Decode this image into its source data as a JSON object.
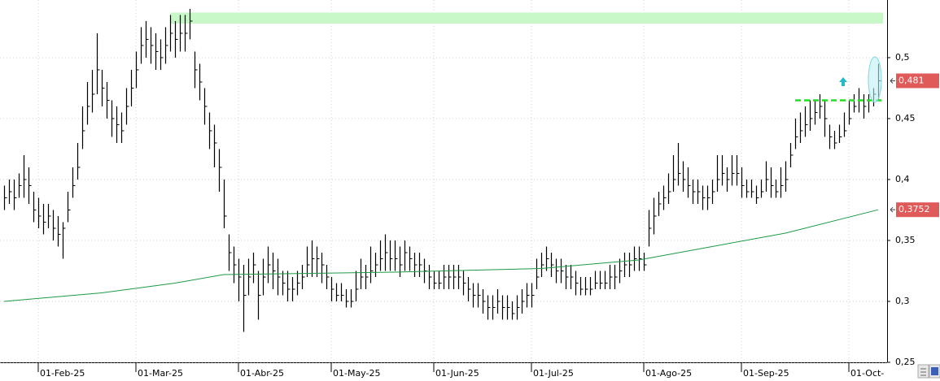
{
  "chart_data": {
    "type": "ohlc",
    "color": "#000000",
    "xlim": [
      -0.83,
      180.83
    ],
    "xticks": [
      {
        "value": 7,
        "label": "01-Feb-25"
      },
      {
        "value": 27,
        "label": "01-Mar-25"
      },
      {
        "value": 48,
        "label": "01-Abr-25"
      },
      {
        "value": 67,
        "label": "01-May-25"
      },
      {
        "value": 88,
        "label": "01-Jun-25"
      },
      {
        "value": 108,
        "label": "01-Jul-25"
      },
      {
        "value": 131,
        "label": "01-Ago-25"
      },
      {
        "value": 151,
        "label": "01-Sep-25"
      },
      {
        "value": 173,
        "label": "01-Oct-"
      }
    ],
    "ylim": [
      0.25,
      0.5473
    ],
    "yticks": [
      {
        "value": 0.25,
        "label": "0,25"
      },
      {
        "value": 0.3,
        "label": "0,3"
      },
      {
        "value": 0.35,
        "label": "0,35"
      },
      {
        "value": 0.4,
        "label": "0,4"
      },
      {
        "value": 0.45,
        "label": "0,45"
      },
      {
        "value": 0.5,
        "label": "0,5"
      }
    ],
    "grid": true,
    "high": [
      0.395,
      0.4,
      0.4,
      0.405,
      0.42,
      0.41,
      0.39,
      0.385,
      0.38,
      0.38,
      0.375,
      0.37,
      0.365,
      0.39,
      0.41,
      0.43,
      0.46,
      0.48,
      0.49,
      0.52,
      0.49,
      0.48,
      0.465,
      0.46,
      0.455,
      0.475,
      0.49,
      0.505,
      0.525,
      0.53,
      0.525,
      0.52,
      0.515,
      0.525,
      0.535,
      0.53,
      0.535,
      0.535,
      0.54,
      0.505,
      0.495,
      0.475,
      0.455,
      0.445,
      0.425,
      0.4,
      0.355,
      0.345,
      0.335,
      0.33,
      0.335,
      0.34,
      0.325,
      0.335,
      0.345,
      0.34,
      0.335,
      0.325,
      0.325,
      0.32,
      0.325,
      0.33,
      0.345,
      0.35,
      0.345,
      0.34,
      0.33,
      0.32,
      0.315,
      0.315,
      0.31,
      0.31,
      0.325,
      0.335,
      0.33,
      0.345,
      0.34,
      0.35,
      0.355,
      0.35,
      0.35,
      0.345,
      0.35,
      0.345,
      0.34,
      0.34,
      0.335,
      0.33,
      0.325,
      0.325,
      0.33,
      0.33,
      0.33,
      0.33,
      0.325,
      0.32,
      0.315,
      0.315,
      0.31,
      0.305,
      0.305,
      0.31,
      0.305,
      0.305,
      0.3,
      0.305,
      0.31,
      0.315,
      0.315,
      0.335,
      0.34,
      0.345,
      0.34,
      0.335,
      0.335,
      0.33,
      0.33,
      0.325,
      0.32,
      0.32,
      0.32,
      0.325,
      0.325,
      0.325,
      0.33,
      0.33,
      0.335,
      0.34,
      0.34,
      0.345,
      0.345,
      0.34,
      0.375,
      0.385,
      0.39,
      0.395,
      0.405,
      0.42,
      0.43,
      0.415,
      0.41,
      0.4,
      0.4,
      0.395,
      0.395,
      0.4,
      0.42,
      0.42,
      0.41,
      0.42,
      0.42,
      0.41,
      0.4,
      0.4,
      0.395,
      0.4,
      0.415,
      0.41,
      0.4,
      0.41,
      0.415,
      0.43,
      0.45,
      0.455,
      0.46,
      0.465,
      0.465,
      0.47,
      0.465,
      0.445,
      0.44,
      0.445,
      0.455,
      0.465,
      0.47,
      0.475,
      0.47,
      0.47,
      0.475,
      0.495
    ],
    "low": [
      0.375,
      0.38,
      0.375,
      0.385,
      0.385,
      0.38,
      0.365,
      0.36,
      0.355,
      0.36,
      0.35,
      0.345,
      0.335,
      0.365,
      0.385,
      0.4,
      0.425,
      0.445,
      0.455,
      0.47,
      0.46,
      0.45,
      0.435,
      0.43,
      0.43,
      0.445,
      0.46,
      0.475,
      0.495,
      0.5,
      0.495,
      0.49,
      0.49,
      0.495,
      0.505,
      0.5,
      0.505,
      0.505,
      0.515,
      0.475,
      0.465,
      0.445,
      0.425,
      0.41,
      0.39,
      0.36,
      0.325,
      0.315,
      0.3,
      0.275,
      0.305,
      0.315,
      0.285,
      0.305,
      0.315,
      0.31,
      0.305,
      0.305,
      0.3,
      0.3,
      0.305,
      0.31,
      0.32,
      0.32,
      0.32,
      0.315,
      0.31,
      0.3,
      0.3,
      0.3,
      0.295,
      0.295,
      0.3,
      0.31,
      0.31,
      0.315,
      0.32,
      0.325,
      0.325,
      0.325,
      0.325,
      0.32,
      0.325,
      0.325,
      0.32,
      0.32,
      0.315,
      0.31,
      0.31,
      0.31,
      0.31,
      0.31,
      0.31,
      0.31,
      0.305,
      0.3,
      0.295,
      0.295,
      0.29,
      0.285,
      0.285,
      0.29,
      0.285,
      0.285,
      0.285,
      0.285,
      0.29,
      0.295,
      0.295,
      0.31,
      0.32,
      0.325,
      0.32,
      0.315,
      0.315,
      0.31,
      0.31,
      0.305,
      0.305,
      0.305,
      0.305,
      0.31,
      0.31,
      0.31,
      0.31,
      0.31,
      0.315,
      0.32,
      0.32,
      0.325,
      0.325,
      0.325,
      0.345,
      0.355,
      0.37,
      0.375,
      0.38,
      0.39,
      0.395,
      0.39,
      0.385,
      0.38,
      0.38,
      0.375,
      0.375,
      0.38,
      0.39,
      0.395,
      0.39,
      0.395,
      0.395,
      0.385,
      0.385,
      0.385,
      0.38,
      0.385,
      0.39,
      0.385,
      0.385,
      0.385,
      0.39,
      0.41,
      0.425,
      0.43,
      0.435,
      0.44,
      0.445,
      0.45,
      0.435,
      0.425,
      0.425,
      0.43,
      0.435,
      0.445,
      0.455,
      0.455,
      0.45,
      0.455,
      0.46,
      0.465
    ],
    "close": [
      0.385,
      0.39,
      0.385,
      0.395,
      0.4,
      0.395,
      0.375,
      0.37,
      0.365,
      0.37,
      0.36,
      0.355,
      0.36,
      0.375,
      0.395,
      0.41,
      0.44,
      0.46,
      0.47,
      0.49,
      0.475,
      0.465,
      0.45,
      0.445,
      0.44,
      0.46,
      0.475,
      0.49,
      0.51,
      0.515,
      0.51,
      0.505,
      0.5,
      0.51,
      0.52,
      0.515,
      0.52,
      0.52,
      0.53,
      0.49,
      0.48,
      0.46,
      0.44,
      0.43,
      0.41,
      0.37,
      0.34,
      0.33,
      0.32,
      0.305,
      0.32,
      0.33,
      0.305,
      0.32,
      0.33,
      0.325,
      0.32,
      0.315,
      0.31,
      0.31,
      0.315,
      0.32,
      0.33,
      0.335,
      0.335,
      0.33,
      0.32,
      0.31,
      0.305,
      0.305,
      0.3,
      0.3,
      0.31,
      0.32,
      0.32,
      0.325,
      0.33,
      0.335,
      0.34,
      0.335,
      0.335,
      0.33,
      0.34,
      0.335,
      0.33,
      0.33,
      0.325,
      0.32,
      0.315,
      0.315,
      0.32,
      0.32,
      0.32,
      0.32,
      0.315,
      0.31,
      0.305,
      0.305,
      0.3,
      0.295,
      0.295,
      0.3,
      0.295,
      0.295,
      0.29,
      0.295,
      0.3,
      0.305,
      0.305,
      0.32,
      0.33,
      0.335,
      0.33,
      0.325,
      0.325,
      0.32,
      0.32,
      0.315,
      0.31,
      0.31,
      0.31,
      0.315,
      0.315,
      0.315,
      0.32,
      0.32,
      0.325,
      0.33,
      0.33,
      0.335,
      0.335,
      0.33,
      0.36,
      0.37,
      0.38,
      0.385,
      0.39,
      0.4,
      0.405,
      0.4,
      0.395,
      0.39,
      0.39,
      0.385,
      0.385,
      0.39,
      0.4,
      0.405,
      0.4,
      0.405,
      0.405,
      0.395,
      0.39,
      0.39,
      0.385,
      0.39,
      0.4,
      0.395,
      0.39,
      0.395,
      0.4,
      0.42,
      0.435,
      0.44,
      0.445,
      0.45,
      0.455,
      0.46,
      0.45,
      0.435,
      0.43,
      0.435,
      0.44,
      0.45,
      0.46,
      0.465,
      0.46,
      0.465,
      0.47,
      0.481
    ],
    "moving_average": {
      "color": "#1e9a46",
      "x": [
        0,
        20,
        35,
        45,
        80,
        110,
        130,
        145,
        160,
        179
      ],
      "values": [
        0.3,
        0.307,
        0.315,
        0.322,
        0.324,
        0.327,
        0.334,
        0.345,
        0.356,
        0.3752
      ]
    },
    "resistance_zone": {
      "color": "#c8f7c8",
      "from": 34,
      "ylim": [
        0.528,
        0.537
      ]
    },
    "breakout_level": {
      "color": "#22dd22",
      "from": 162,
      "value": 0.465
    },
    "price_labels": [
      {
        "value": 0.481,
        "label": "0,481",
        "color": "#e05a5a"
      },
      {
        "value": 0.3752,
        "label": "0,3752",
        "color": "#e05a5a"
      }
    ]
  }
}
